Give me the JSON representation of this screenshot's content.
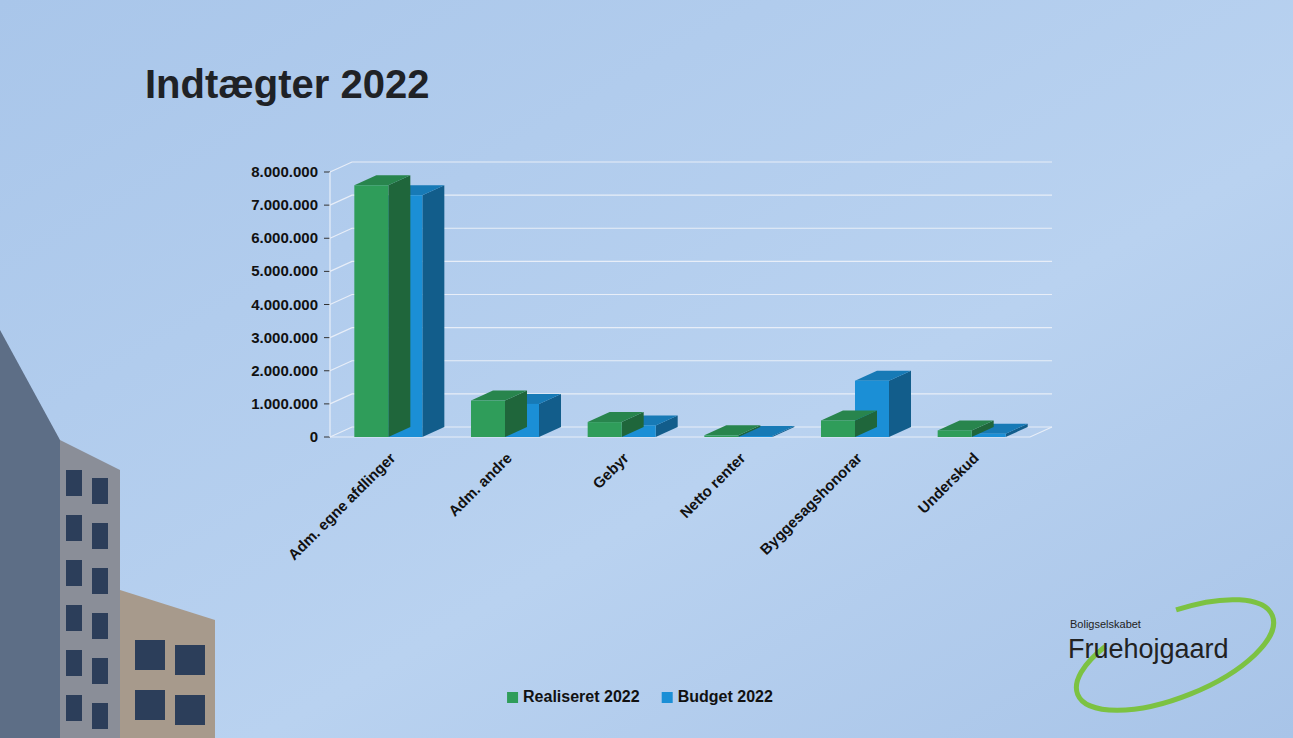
{
  "chart_data": {
    "type": "bar",
    "title": "Indtægter 2022",
    "categories": [
      "Adm. egne afdlinger",
      "Adm. andre",
      "Gebyr",
      "Netto renter",
      "Byggesagshonorar",
      "Underskud"
    ],
    "series": [
      {
        "name": "Realiseret 2022",
        "color": "#2f9d5a",
        "values": [
          7600000,
          1100000,
          450000,
          50000,
          500000,
          200000
        ]
      },
      {
        "name": "Budget 2022",
        "color": "#1b8fd6",
        "values": [
          7300000,
          1000000,
          350000,
          30000,
          1700000,
          100000
        ]
      }
    ],
    "ylim": [
      0,
      8000000
    ],
    "yticks": [
      0,
      {
        "value": 1000000,
        "label": "1.000.000"
      },
      {
        "value": 2000000,
        "label": "2.000.000"
      },
      {
        "value": 3000000,
        "label": "3.000.000"
      },
      {
        "value": 4000000,
        "label": "4.000.000"
      },
      {
        "value": 5000000,
        "label": "5.000.000"
      },
      {
        "value": 6000000,
        "label": "6.000.000"
      },
      {
        "value": 7000000,
        "label": "7.000.000"
      },
      {
        "value": 8000000,
        "label": "8.000.000"
      }
    ],
    "grid": true,
    "legend": "bottom",
    "annotations": [
      "Boligselskabet",
      "Fruehojgaard"
    ]
  }
}
